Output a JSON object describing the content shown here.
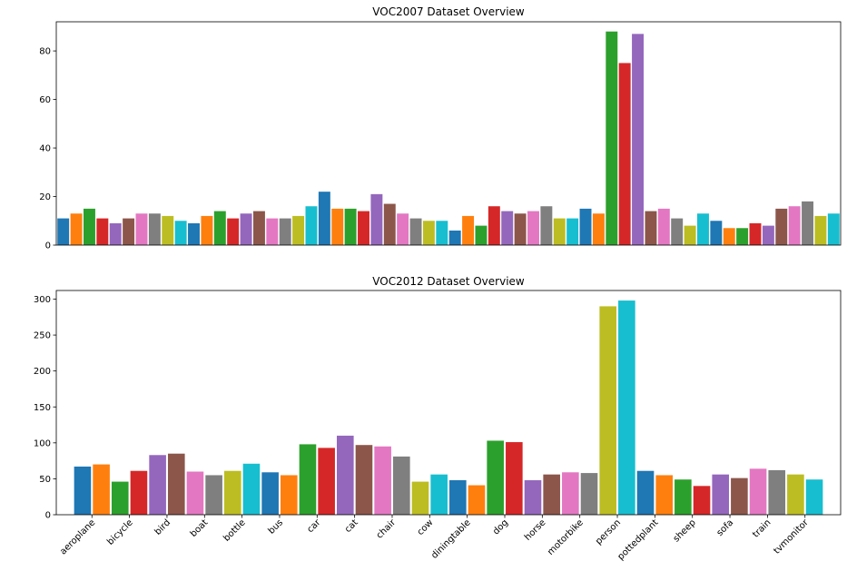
{
  "chart_data": [
    {
      "type": "bar",
      "title": "VOC2007 Dataset Overview",
      "xlabel": "",
      "ylabel": "",
      "ylim": [
        0,
        92
      ],
      "yticks": [
        0,
        20,
        40,
        60,
        80
      ],
      "show_xticklabels": false,
      "grid": false,
      "categories": [
        "aeroplane",
        "bicycle",
        "bird",
        "boat",
        "bottle",
        "bus",
        "car",
        "cat",
        "chair",
        "cow",
        "diningtable",
        "dog",
        "horse",
        "motorbike",
        "person",
        "pottedplant",
        "sheep",
        "sofa",
        "train",
        "tvmonitor"
      ],
      "bars_per_category": 3,
      "values": [
        [
          11,
          13,
          15
        ],
        [
          11,
          9,
          11
        ],
        [
          13,
          13,
          12
        ],
        [
          10,
          9,
          12
        ],
        [
          14,
          11,
          13
        ],
        [
          14,
          11,
          11
        ],
        [
          12,
          16,
          22
        ],
        [
          15,
          15,
          14
        ],
        [
          21,
          17,
          13
        ],
        [
          11,
          10,
          10
        ],
        [
          6,
          12,
          8
        ],
        [
          16,
          14,
          13
        ],
        [
          14,
          16,
          11
        ],
        [
          11,
          15,
          13
        ],
        [
          88,
          75,
          87
        ],
        [
          14,
          15,
          11
        ],
        [
          8,
          13,
          10
        ],
        [
          7,
          7,
          9
        ],
        [
          8,
          15,
          16
        ],
        [
          18,
          12,
          13
        ]
      ]
    },
    {
      "type": "bar",
      "title": "VOC2012 Dataset Overview",
      "xlabel": "",
      "ylabel": "",
      "ylim": [
        0,
        312
      ],
      "yticks": [
        0,
        50,
        100,
        150,
        200,
        250,
        300
      ],
      "show_xticklabels": true,
      "xtick_rotation": 45,
      "grid": false,
      "categories": [
        "aeroplane",
        "bicycle",
        "bird",
        "boat",
        "bottle",
        "bus",
        "car",
        "cat",
        "chair",
        "cow",
        "diningtable",
        "dog",
        "horse",
        "motorbike",
        "person",
        "pottedplant",
        "sheep",
        "sofa",
        "train",
        "tvmonitor"
      ],
      "bars_per_category": 2,
      "values": [
        [
          67,
          70
        ],
        [
          46,
          61
        ],
        [
          83,
          85
        ],
        [
          60,
          55
        ],
        [
          61,
          71
        ],
        [
          59,
          55
        ],
        [
          98,
          93
        ],
        [
          110,
          97
        ],
        [
          95,
          81
        ],
        [
          46,
          56
        ],
        [
          48,
          41
        ],
        [
          103,
          101
        ],
        [
          48,
          56
        ],
        [
          59,
          58
        ],
        [
          290,
          298
        ],
        [
          61,
          55
        ],
        [
          49,
          40
        ],
        [
          56,
          51
        ],
        [
          64,
          62
        ],
        [
          56,
          49
        ]
      ]
    }
  ],
  "palette": [
    "#1f77b4",
    "#ff7f0e",
    "#2ca02c",
    "#d62728",
    "#9467bd",
    "#8c564b",
    "#e377c2",
    "#7f7f7f",
    "#bcbd22",
    "#17becf"
  ]
}
